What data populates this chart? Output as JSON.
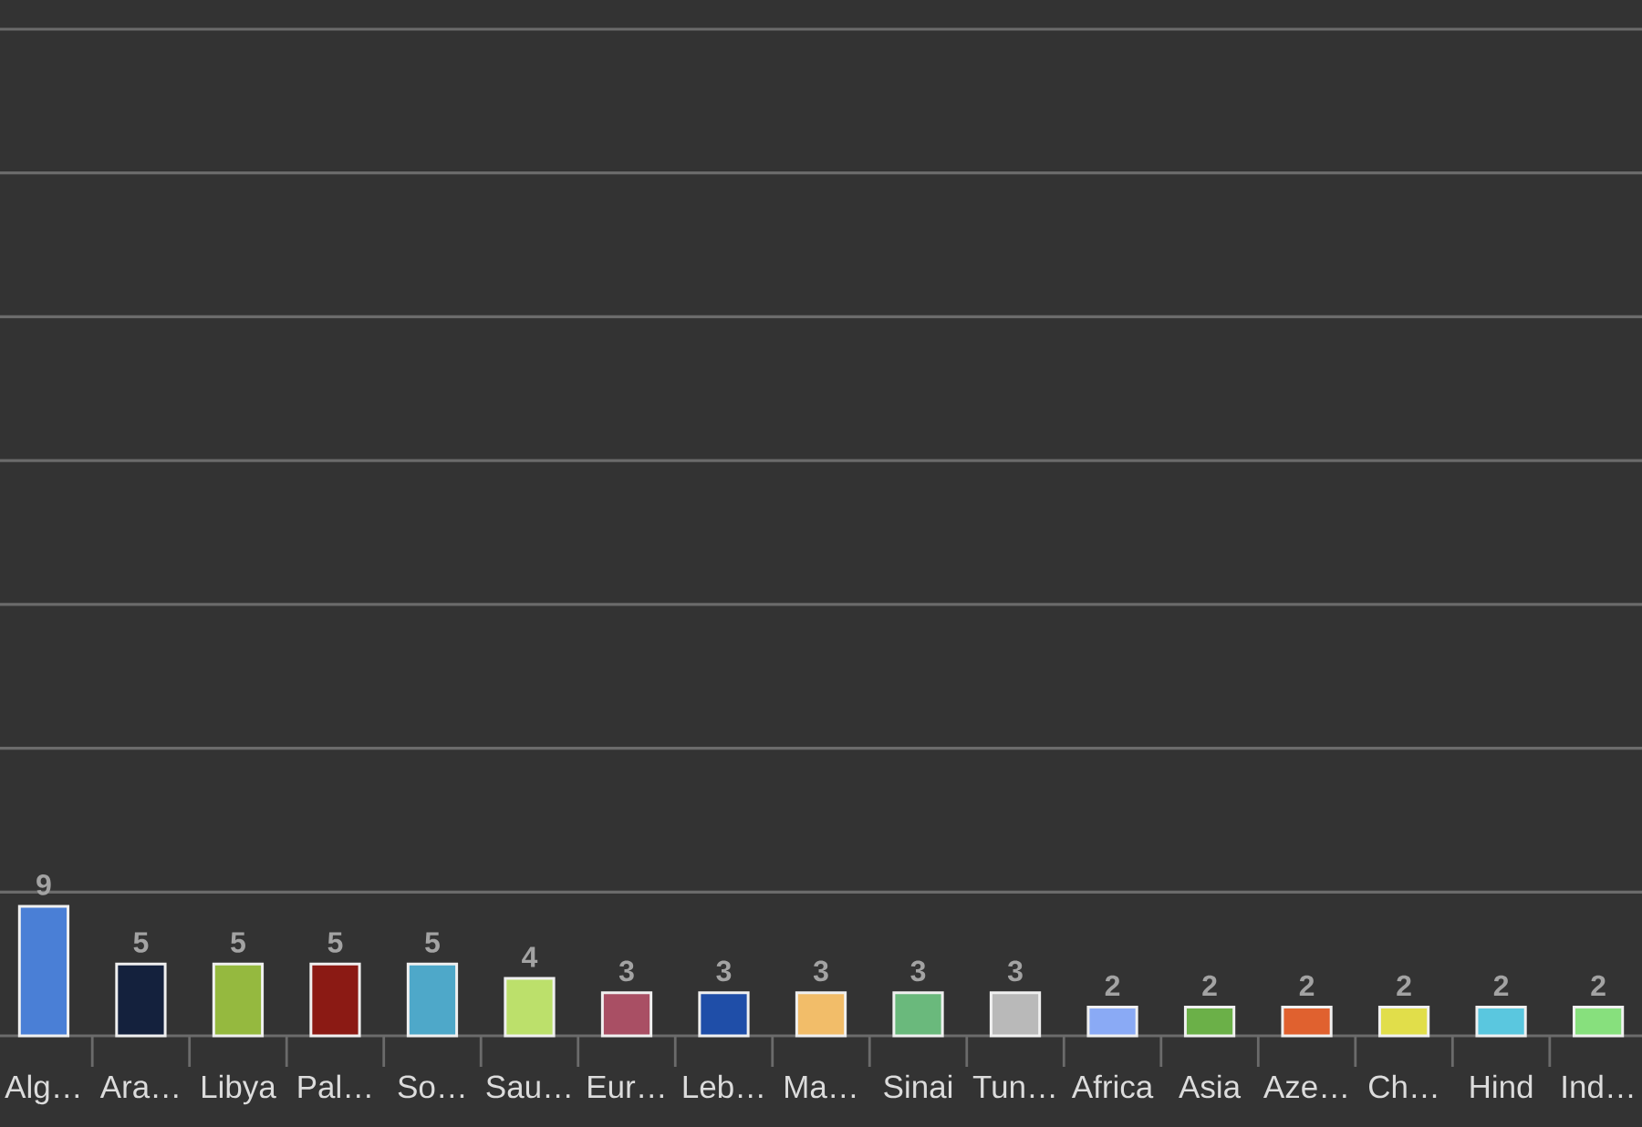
{
  "chart_data": {
    "type": "bar",
    "categories": [
      "Alg…",
      "Ara…",
      "Libya",
      "Pal…",
      "So…",
      "Sau…",
      "Eur…",
      "Leb…",
      "Ma…",
      "Sinai",
      "Tun…",
      "Africa",
      "Asia",
      "Aze…",
      "Ch…",
      "Hind",
      "Ind…"
    ],
    "values": [
      9,
      5,
      5,
      5,
      5,
      4,
      3,
      3,
      3,
      3,
      3,
      2,
      2,
      2,
      2,
      2,
      2
    ],
    "colors": [
      "#4a7fd6",
      "#14213d",
      "#95b93f",
      "#8b1a14",
      "#4ea8c9",
      "#bce06b",
      "#a94f64",
      "#1f4ea8",
      "#f2bd69",
      "#6ab97c",
      "#b9b9b9",
      "#8aaaf5",
      "#6bb048",
      "#e0612f",
      "#e1de4a",
      "#5ac7df",
      "#87e07d"
    ],
    "ylim": [
      0,
      70
    ],
    "yticks": [
      {
        "value": 0,
        "label": null
      },
      {
        "value": 10,
        "label": null
      },
      {
        "value": 20,
        "label": null
      },
      {
        "value": 30,
        "label": null
      },
      {
        "value": 40,
        "label": null
      },
      {
        "value": 50,
        "label": null
      },
      {
        "value": 60,
        "label": null
      },
      {
        "value": 70,
        "label": null
      }
    ],
    "grid": "y",
    "data_labels": true,
    "tick_labels": "x"
  }
}
